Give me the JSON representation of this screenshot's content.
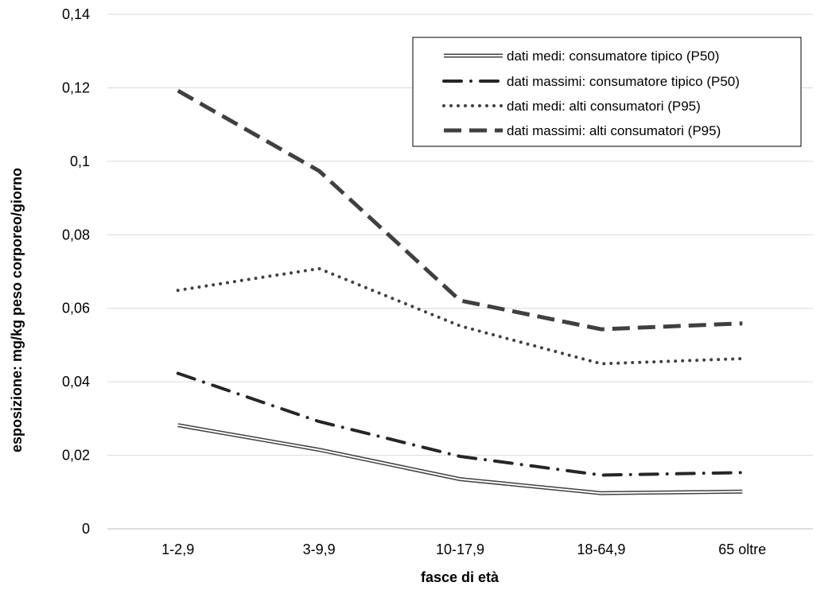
{
  "chart_data": {
    "type": "line",
    "title": "",
    "xlabel": "fasce di età",
    "ylabel": "esposizione: mg/kg peso corporeo/giorno",
    "categories": [
      "1-2,9",
      "3-9,9",
      "10-17,9",
      "18-64,9",
      "65 oltre"
    ],
    "ylim": [
      0,
      0.14
    ],
    "yticks": [
      0,
      0.02,
      0.04,
      0.06,
      0.08,
      0.1,
      0.12,
      0.14
    ],
    "ytick_labels": [
      "0",
      "0,02",
      "0,04",
      "0,06",
      "0,08",
      "0,1",
      "0,12",
      "0,14"
    ],
    "grid": true,
    "legend_position": "top-right",
    "series": [
      {
        "name": "dati medi: consumatore tipico (P50)",
        "values": [
          0.0282,
          0.0215,
          0.0135,
          0.0097,
          0.0101
        ],
        "style": "double",
        "color": "#404040"
      },
      {
        "name": "dati massimi: consumatore tipico (P50)",
        "values": [
          0.0423,
          0.0292,
          0.0197,
          0.0146,
          0.0153
        ],
        "style": "dashdot",
        "color": "#262626"
      },
      {
        "name": "dati medi: alti consumatori (P95)",
        "values": [
          0.0649,
          0.0708,
          0.0552,
          0.0449,
          0.0463
        ],
        "style": "dotted",
        "color": "#404040"
      },
      {
        "name": "dati massimi: alti consumatori  (P95)",
        "values": [
          0.1192,
          0.0974,
          0.0621,
          0.0543,
          0.0559
        ],
        "style": "dashed",
        "color": "#404040"
      }
    ]
  }
}
